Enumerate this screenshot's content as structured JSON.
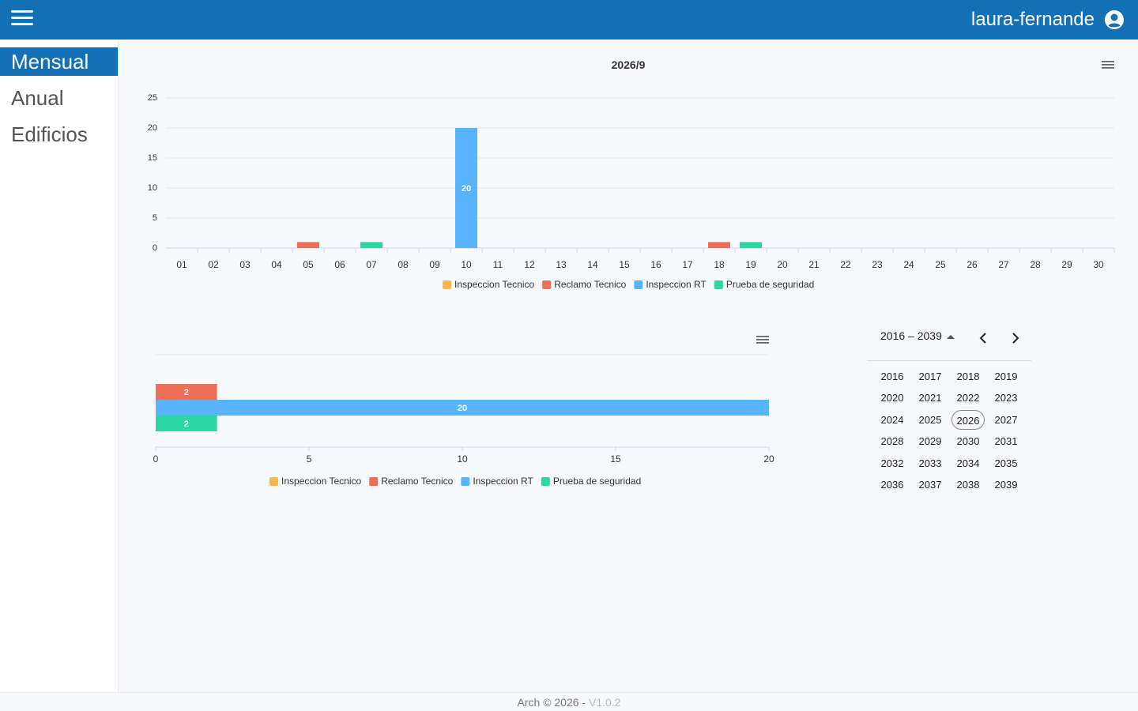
{
  "header": {
    "menu_icon": "hamburger-icon",
    "username": "laura-fernande",
    "user_icon": "account-circle-icon"
  },
  "sidebar": {
    "items": [
      {
        "label": "Mensual",
        "active": true
      },
      {
        "label": "Anual",
        "active": false
      },
      {
        "label": "Edificios",
        "active": false
      }
    ]
  },
  "colors": {
    "primary": "#1470b5",
    "Inspeccion Tecnico": "#f9b74a",
    "Reclamo Tecnico": "#ee6e58",
    "Inspeccion RT": "#58b4fc",
    "Prueba de seguridad": "#2ed6a3"
  },
  "chart_data": [
    {
      "type": "bar",
      "title": "2026/9",
      "stacked": true,
      "categories": [
        "01",
        "02",
        "03",
        "04",
        "05",
        "06",
        "07",
        "08",
        "09",
        "10",
        "11",
        "12",
        "13",
        "14",
        "15",
        "16",
        "17",
        "18",
        "19",
        "20",
        "21",
        "22",
        "23",
        "24",
        "25",
        "26",
        "27",
        "28",
        "29",
        "30"
      ],
      "ylim": [
        0,
        25
      ],
      "yticks": [
        0,
        5,
        10,
        15,
        20,
        25
      ],
      "grid": true,
      "legend_position": "bottom",
      "series": [
        {
          "name": "Inspeccion Tecnico",
          "color": "#f9b74a",
          "values": [
            0,
            0,
            0,
            0,
            0,
            0,
            0,
            0,
            0,
            0,
            0,
            0,
            0,
            0,
            0,
            0,
            0,
            0,
            0,
            0,
            0,
            0,
            0,
            0,
            0,
            0,
            0,
            0,
            0,
            0
          ]
        },
        {
          "name": "Reclamo Tecnico",
          "color": "#ee6e58",
          "values": [
            0,
            0,
            0,
            0,
            1,
            0,
            0,
            0,
            0,
            0,
            0,
            0,
            0,
            0,
            0,
            0,
            0,
            1,
            0,
            0,
            0,
            0,
            0,
            0,
            0,
            0,
            0,
            0,
            0,
            0
          ]
        },
        {
          "name": "Inspeccion RT",
          "color": "#58b4fc",
          "values": [
            0,
            0,
            0,
            0,
            0,
            0,
            0,
            0,
            0,
            20,
            0,
            0,
            0,
            0,
            0,
            0,
            0,
            0,
            0,
            0,
            0,
            0,
            0,
            0,
            0,
            0,
            0,
            0,
            0,
            0
          ]
        },
        {
          "name": "Prueba de seguridad",
          "color": "#2ed6a3",
          "values": [
            0,
            0,
            0,
            0,
            0,
            0,
            1,
            0,
            0,
            0,
            0,
            0,
            0,
            0,
            0,
            0,
            0,
            0,
            1,
            0,
            0,
            0,
            0,
            0,
            0,
            0,
            0,
            0,
            0,
            0
          ]
        }
      ],
      "data_labels": [
        {
          "category": "10",
          "value": "20"
        }
      ]
    },
    {
      "type": "bar",
      "orientation": "horizontal",
      "xlim": [
        0,
        20
      ],
      "xticks": [
        0,
        5,
        10,
        15,
        20
      ],
      "legend_position": "bottom",
      "series": [
        {
          "name": "Inspeccion Tecnico",
          "color": "#f9b74a",
          "value": 0
        },
        {
          "name": "Reclamo Tecnico",
          "color": "#ee6e58",
          "value": 2
        },
        {
          "name": "Inspeccion RT",
          "color": "#58b4fc",
          "value": 20
        },
        {
          "name": "Prueba de seguridad",
          "color": "#2ed6a3",
          "value": 2
        }
      ]
    }
  ],
  "chart_menu_icon": "hamburger-menu-icon",
  "year_picker": {
    "range_label": "2016 – 2039",
    "prev_icon": "chevron-left-icon",
    "next_icon": "chevron-right-icon",
    "selected": "2026",
    "years": [
      "2016",
      "2017",
      "2018",
      "2019",
      "2020",
      "2021",
      "2022",
      "2023",
      "2024",
      "2025",
      "2026",
      "2027",
      "2028",
      "2029",
      "2030",
      "2031",
      "2032",
      "2033",
      "2034",
      "2035",
      "2036",
      "2037",
      "2038",
      "2039"
    ]
  },
  "footer": {
    "copyright": "Arch © 2026 - ",
    "version": "V1.0.2"
  }
}
